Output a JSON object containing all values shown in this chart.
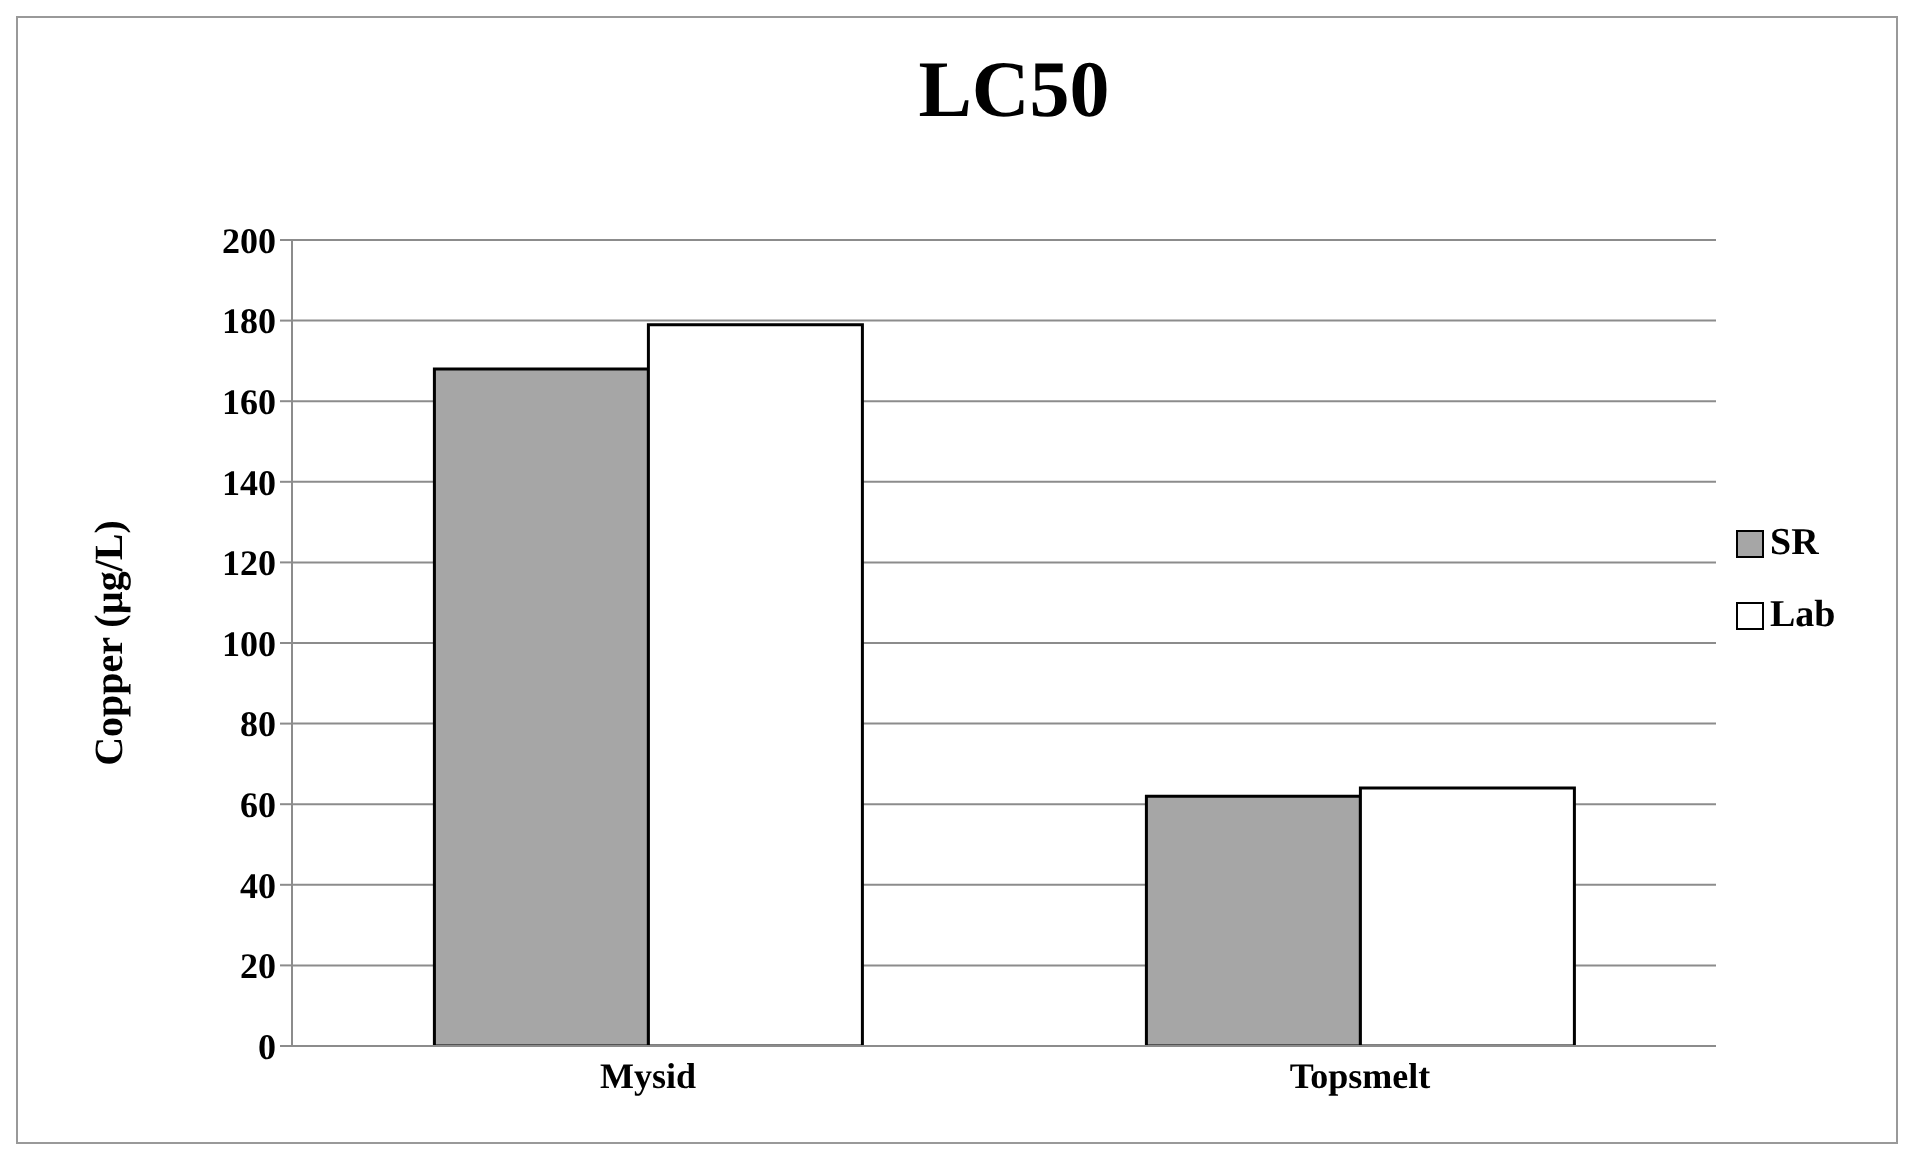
{
  "chart_data": {
    "type": "bar",
    "title": "LC50",
    "ylabel": "Copper (µg/L)",
    "categories": [
      "Mysid",
      "Topsmelt"
    ],
    "series": [
      {
        "name": "SR",
        "color": "#a6a6a6",
        "values": [
          168,
          62
        ]
      },
      {
        "name": "Lab",
        "color": "#ffffff",
        "values": [
          179,
          64
        ]
      }
    ],
    "ylim": [
      0,
      200
    ],
    "yticks": [
      0,
      20,
      40,
      60,
      80,
      100,
      120,
      140,
      160,
      180,
      200
    ],
    "grid": "y",
    "legend": "right"
  }
}
